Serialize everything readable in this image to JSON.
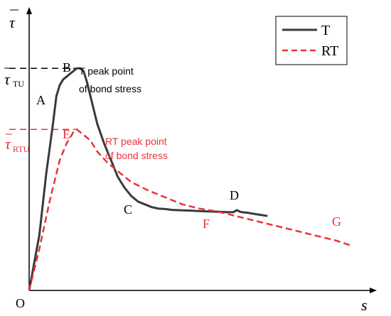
{
  "chart_data": {
    "type": "line",
    "title": "",
    "xlabel": "s",
    "ylabel": "τ",
    "xlim": [
      0,
      100
    ],
    "ylim": [
      0,
      100
    ],
    "grid": false,
    "legend_position": "top-right",
    "colors": {
      "T": "#3a3a3a",
      "RT": "#e8333a",
      "axis": "#000000",
      "black_text": "#000000",
      "red_text": "#e8333a"
    },
    "series": [
      {
        "name": "T",
        "style": "solid",
        "x": [
          0,
          3,
          5,
          7,
          8,
          9,
          10,
          11,
          12,
          13,
          14,
          15,
          16,
          17,
          18,
          19,
          20,
          22,
          24,
          26,
          28,
          30,
          32,
          34,
          36,
          38,
          40,
          42,
          44,
          46,
          48,
          50,
          52,
          54,
          56,
          58,
          60,
          61,
          62,
          63,
          64,
          66,
          68,
          70
        ],
        "y": [
          0,
          20,
          42,
          60,
          70,
          74,
          76,
          77,
          78,
          79,
          80,
          80,
          79,
          75,
          70,
          65,
          60,
          53,
          47,
          41,
          37,
          34,
          32,
          31,
          30,
          29.5,
          29.3,
          29,
          28.9,
          28.8,
          28.7,
          28.6,
          28.5,
          28.4,
          28.3,
          28.2,
          28.2,
          28.9,
          28.3,
          28.1,
          28.0,
          27.6,
          27.2,
          26.8
        ]
      },
      {
        "name": "RT",
        "style": "dashed",
        "x": [
          0,
          3,
          6,
          9,
          11,
          12,
          13,
          14,
          15,
          16,
          17,
          18,
          20,
          23,
          27,
          30,
          35,
          40,
          45,
          50,
          55,
          60,
          65,
          70,
          75,
          80,
          85,
          90,
          95
        ],
        "y": [
          0,
          15,
          32,
          47,
          53,
          55,
          57,
          58,
          57,
          56,
          55,
          54,
          50,
          46,
          42,
          39,
          36,
          33.5,
          31,
          29.5,
          28.5,
          27,
          25.5,
          24,
          22.5,
          21,
          19.5,
          18,
          16
        ]
      }
    ],
    "peak_lines": [
      {
        "label": "τ_TU",
        "y": 80
      },
      {
        "label": "τ_RTU",
        "y": 58
      }
    ],
    "points": [
      {
        "label": "O",
        "series": "origin"
      },
      {
        "label": "A",
        "series": "T"
      },
      {
        "label": "B",
        "series": "T"
      },
      {
        "label": "C",
        "series": "T"
      },
      {
        "label": "D",
        "series": "T"
      },
      {
        "label": "E",
        "series": "RT"
      },
      {
        "label": "F",
        "series": "RT"
      },
      {
        "label": "G",
        "series": "RT"
      }
    ],
    "annotations": [
      {
        "text": "T peak point",
        "series": "T"
      },
      {
        "text": "of bond stress",
        "series": "T"
      },
      {
        "text": "RT peak point",
        "series": "RT"
      },
      {
        "text": "of bond stress",
        "series": "RT"
      }
    ]
  }
}
